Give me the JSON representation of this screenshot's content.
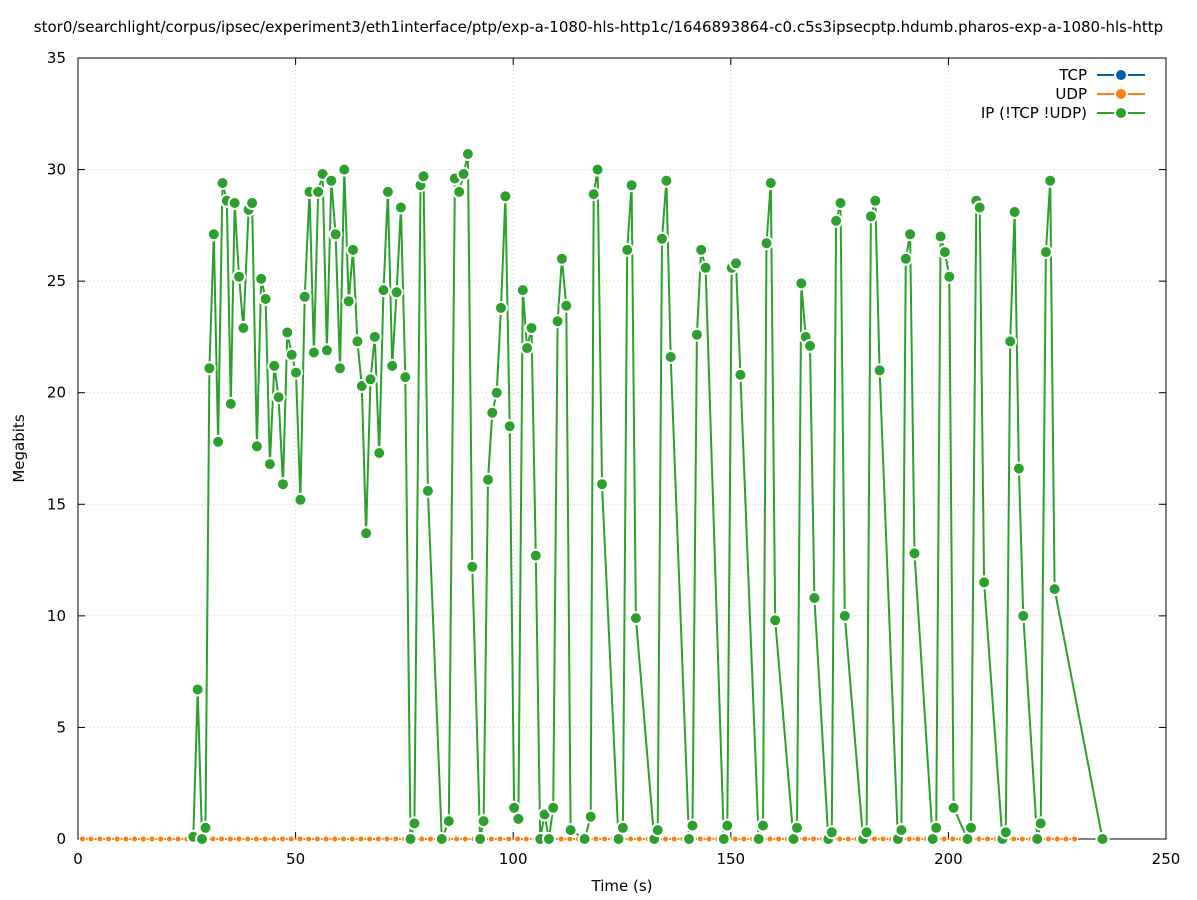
{
  "chart_data": {
    "type": "line",
    "title": "stor0/searchlight/corpus/ipsec/experiment3/eth1interface/ptp/exp-a-1080-hls-http1c/1646893864-c0.c5s3ipsecptp.hdumb.pharos-exp-a-1080-hls-http",
    "xlabel": "Time (s)",
    "ylabel": "Megabits",
    "xlim": [
      0,
      250
    ],
    "ylim": [
      0,
      35
    ],
    "x_ticks": [
      "0",
      "50",
      "100",
      "150",
      "200",
      "250"
    ],
    "y_ticks": [
      "0",
      "5",
      "10",
      "15",
      "20",
      "25",
      "30",
      "35"
    ],
    "grid": true,
    "legend_position": "top-right",
    "series": [
      {
        "name": "TCP",
        "color": "#0060ad",
        "points": []
      },
      {
        "name": "UDP",
        "color": "#ff7f0e",
        "points": [
          [
            1,
            0
          ],
          [
            3,
            0
          ],
          [
            5,
            0
          ],
          [
            7,
            0
          ],
          [
            9,
            0
          ],
          [
            11,
            0
          ],
          [
            13,
            0
          ],
          [
            15,
            0
          ],
          [
            17,
            0
          ],
          [
            19,
            0
          ],
          [
            21,
            0
          ],
          [
            23,
            0
          ],
          [
            25,
            0
          ],
          [
            27,
            0
          ],
          [
            29,
            0
          ],
          [
            31,
            0
          ],
          [
            33,
            0
          ],
          [
            35,
            0
          ],
          [
            37,
            0
          ],
          [
            39,
            0
          ],
          [
            41,
            0
          ],
          [
            43,
            0
          ],
          [
            45,
            0
          ],
          [
            47,
            0
          ],
          [
            49,
            0
          ],
          [
            51,
            0
          ],
          [
            53,
            0
          ],
          [
            55,
            0
          ],
          [
            57,
            0
          ],
          [
            59,
            0
          ],
          [
            61,
            0
          ],
          [
            63,
            0
          ],
          [
            65,
            0
          ],
          [
            67,
            0
          ],
          [
            69,
            0
          ],
          [
            71,
            0
          ],
          [
            73,
            0
          ],
          [
            75,
            0
          ],
          [
            77,
            0
          ],
          [
            79,
            0
          ],
          [
            81,
            0
          ],
          [
            83,
            0
          ],
          [
            85,
            0
          ],
          [
            87,
            0
          ],
          [
            89,
            0
          ],
          [
            91,
            0
          ],
          [
            93,
            0
          ],
          [
            95,
            0
          ],
          [
            97,
            0
          ],
          [
            99,
            0
          ],
          [
            101,
            0
          ],
          [
            103,
            0
          ],
          [
            105,
            0
          ],
          [
            107,
            0
          ],
          [
            109,
            0
          ],
          [
            111,
            0
          ],
          [
            113,
            0
          ],
          [
            115,
            0
          ],
          [
            117,
            0
          ],
          [
            119,
            0
          ],
          [
            121,
            0
          ],
          [
            123,
            0
          ],
          [
            125,
            0
          ],
          [
            127,
            0
          ],
          [
            129,
            0
          ],
          [
            131,
            0
          ],
          [
            133,
            0
          ],
          [
            135,
            0
          ],
          [
            137,
            0
          ],
          [
            139,
            0
          ],
          [
            141,
            0
          ],
          [
            143,
            0
          ],
          [
            145,
            0
          ],
          [
            147,
            0
          ],
          [
            149,
            0
          ],
          [
            151,
            0
          ],
          [
            153,
            0
          ],
          [
            155,
            0
          ],
          [
            157,
            0
          ],
          [
            159,
            0
          ],
          [
            161,
            0
          ],
          [
            163,
            0
          ],
          [
            165,
            0
          ],
          [
            167,
            0
          ],
          [
            169,
            0
          ],
          [
            171,
            0
          ],
          [
            173,
            0
          ],
          [
            175,
            0
          ],
          [
            177,
            0
          ],
          [
            179,
            0
          ],
          [
            181,
            0
          ],
          [
            183,
            0
          ],
          [
            185,
            0
          ],
          [
            187,
            0
          ],
          [
            189,
            0
          ],
          [
            191,
            0
          ],
          [
            193,
            0
          ],
          [
            195,
            0
          ],
          [
            197,
            0
          ],
          [
            199,
            0
          ],
          [
            201,
            0
          ],
          [
            203,
            0
          ],
          [
            205,
            0
          ],
          [
            207,
            0
          ],
          [
            209,
            0
          ],
          [
            211,
            0
          ],
          [
            213,
            0
          ],
          [
            215,
            0
          ],
          [
            217,
            0
          ],
          [
            219,
            0
          ],
          [
            221,
            0
          ],
          [
            223,
            0
          ],
          [
            225,
            0
          ],
          [
            227,
            0
          ],
          [
            229,
            0
          ]
        ]
      },
      {
        "name": "IP (!TCP  !UDP)",
        "color": "#2ca02c",
        "points": [
          [
            26.5,
            0.1
          ],
          [
            27.5,
            6.7
          ],
          [
            28.5,
            0
          ],
          [
            29.3,
            0.5
          ],
          [
            30.2,
            21.1
          ],
          [
            31.2,
            27.1
          ],
          [
            32.2,
            17.8
          ],
          [
            33.2,
            29.4
          ],
          [
            34.2,
            28.6
          ],
          [
            35.1,
            19.5
          ],
          [
            36,
            28.5
          ],
          [
            37,
            25.2
          ],
          [
            38,
            22.9
          ],
          [
            39.2,
            28.2
          ],
          [
            40,
            28.5
          ],
          [
            41.1,
            17.6
          ],
          [
            42.1,
            25.1
          ],
          [
            43.1,
            24.2
          ],
          [
            44.1,
            16.8
          ],
          [
            45.1,
            21.2
          ],
          [
            46.1,
            19.8
          ],
          [
            47.1,
            15.9
          ],
          [
            48.1,
            22.7
          ],
          [
            49.1,
            21.7
          ],
          [
            50.1,
            20.9
          ],
          [
            51.1,
            15.2
          ],
          [
            52.1,
            24.3
          ],
          [
            53.2,
            29
          ],
          [
            54.2,
            21.8
          ],
          [
            55.2,
            29
          ],
          [
            56.2,
            29.8
          ],
          [
            57.2,
            21.9
          ],
          [
            58.2,
            29.5
          ],
          [
            59.2,
            27.1
          ],
          [
            60.2,
            21.1
          ],
          [
            61.2,
            30
          ],
          [
            62.2,
            24.1
          ],
          [
            63.2,
            26.4
          ],
          [
            64.2,
            22.3
          ],
          [
            65.2,
            20.3
          ],
          [
            66.2,
            13.7
          ],
          [
            67.2,
            20.6
          ],
          [
            68.2,
            22.5
          ],
          [
            69.2,
            17.3
          ],
          [
            70.2,
            24.6
          ],
          [
            71.2,
            29
          ],
          [
            72.2,
            21.2
          ],
          [
            73.2,
            24.5
          ],
          [
            74.2,
            28.3
          ],
          [
            75.2,
            20.7
          ],
          [
            76.4,
            0
          ],
          [
            77.3,
            0.7
          ],
          [
            78.7,
            29.3
          ],
          [
            79.4,
            29.7
          ],
          [
            80.4,
            15.6
          ],
          [
            83.6,
            0
          ],
          [
            85.2,
            0.8
          ],
          [
            86.6,
            29.6
          ],
          [
            87.6,
            29
          ],
          [
            88.6,
            29.8
          ],
          [
            89.6,
            30.7
          ],
          [
            90.6,
            12.2
          ],
          [
            92.4,
            0
          ],
          [
            93.2,
            0.8
          ],
          [
            94.2,
            16.1
          ],
          [
            95.2,
            19.1
          ],
          [
            96.2,
            20
          ],
          [
            97.2,
            23.8
          ],
          [
            98.2,
            28.8
          ],
          [
            99.2,
            18.5
          ],
          [
            100.2,
            1.4
          ],
          [
            101.2,
            0.9
          ],
          [
            102.2,
            24.6
          ],
          [
            103.2,
            22
          ],
          [
            104.2,
            22.9
          ],
          [
            105.2,
            12.7
          ],
          [
            106.2,
            0
          ],
          [
            107.2,
            1.1
          ],
          [
            108.2,
            0
          ],
          [
            109.2,
            1.4
          ],
          [
            110.2,
            23.2
          ],
          [
            111.2,
            26
          ],
          [
            112.2,
            23.9
          ],
          [
            113.2,
            0.4
          ],
          [
            116.4,
            0
          ],
          [
            117.8,
            1
          ],
          [
            118.5,
            28.9
          ],
          [
            119.4,
            30
          ],
          [
            120.4,
            15.9
          ],
          [
            124.2,
            0
          ],
          [
            125.2,
            0.5
          ],
          [
            126.2,
            26.4
          ],
          [
            127.2,
            29.3
          ],
          [
            128.2,
            9.9
          ],
          [
            132.4,
            0
          ],
          [
            133.2,
            0.4
          ],
          [
            134.2,
            26.9
          ],
          [
            135.2,
            29.5
          ],
          [
            136.2,
            21.6
          ],
          [
            140.4,
            0
          ],
          [
            141.2,
            0.6
          ],
          [
            142.2,
            22.6
          ],
          [
            143.2,
            26.4
          ],
          [
            144.2,
            25.6
          ],
          [
            148.4,
            0
          ],
          [
            149.2,
            0.6
          ],
          [
            150.2,
            25.6
          ],
          [
            151.2,
            25.8
          ],
          [
            152.2,
            20.8
          ],
          [
            156.4,
            0
          ],
          [
            157.4,
            0.6
          ],
          [
            158.2,
            26.7
          ],
          [
            159.2,
            29.4
          ],
          [
            160.2,
            9.8
          ],
          [
            164.4,
            0
          ],
          [
            165.2,
            0.5
          ],
          [
            166.2,
            24.9
          ],
          [
            167.2,
            22.5
          ],
          [
            168.2,
            22.1
          ],
          [
            169.2,
            10.8
          ],
          [
            172.4,
            0
          ],
          [
            173.2,
            0.3
          ],
          [
            174.2,
            27.7
          ],
          [
            175.2,
            28.5
          ],
          [
            176.2,
            10
          ],
          [
            180.4,
            0
          ],
          [
            181.2,
            0.3
          ],
          [
            182.2,
            27.9
          ],
          [
            183.2,
            28.6
          ],
          [
            184.2,
            21
          ],
          [
            188.4,
            0
          ],
          [
            189.2,
            0.4
          ],
          [
            190.2,
            26
          ],
          [
            191.2,
            27.1
          ],
          [
            192.2,
            12.8
          ],
          [
            196.4,
            0
          ],
          [
            197.2,
            0.5
          ],
          [
            198.2,
            27
          ],
          [
            199.2,
            26.3
          ],
          [
            200.2,
            25.2
          ],
          [
            201.2,
            1.4
          ],
          [
            204.4,
            0
          ],
          [
            205.2,
            0.5
          ],
          [
            206.4,
            28.6
          ],
          [
            207.2,
            28.3
          ],
          [
            208.2,
            11.5
          ],
          [
            212.4,
            0
          ],
          [
            213.2,
            0.3
          ],
          [
            214.2,
            22.3
          ],
          [
            215.2,
            28.1
          ],
          [
            216.2,
            16.6
          ],
          [
            217.2,
            10
          ],
          [
            220.4,
            0
          ],
          [
            221.2,
            0.7
          ],
          [
            222.4,
            26.3
          ],
          [
            223.4,
            29.5
          ],
          [
            224.4,
            11.2
          ],
          [
            235.4,
            0
          ]
        ]
      }
    ]
  }
}
